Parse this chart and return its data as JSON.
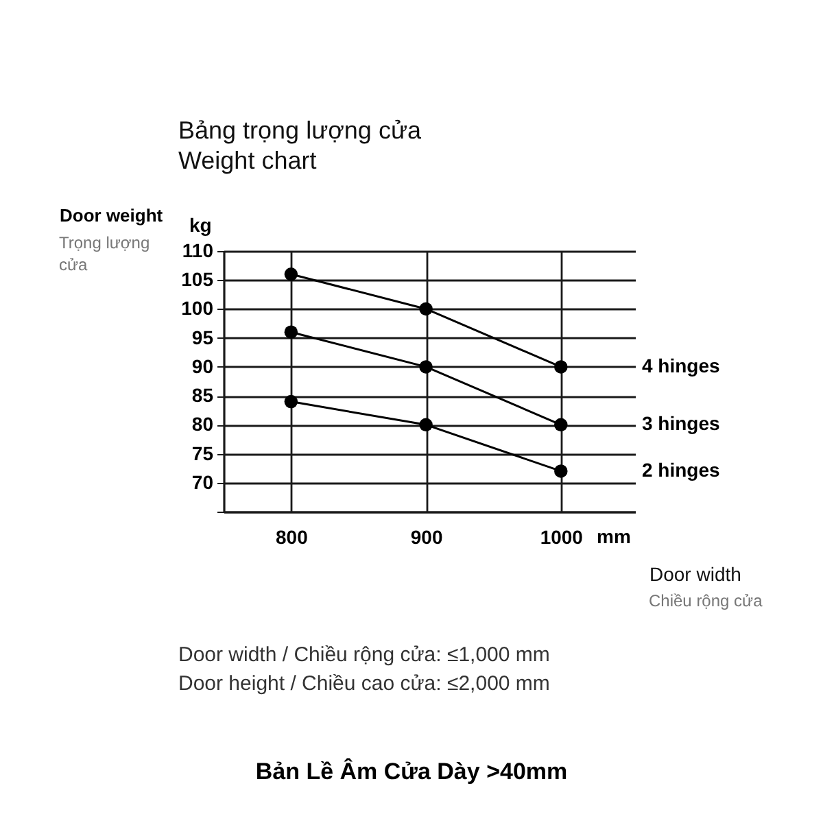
{
  "chart_data": {
    "type": "line",
    "title": "Bảng trọng lượng cửa",
    "subtitle": "Weight chart",
    "xlabel": "Door width",
    "ylabel": "Door weight",
    "x": [
      800,
      900,
      1000
    ],
    "series": [
      {
        "name": "4 hinges",
        "color": "#000000",
        "values": [
          106,
          100,
          90
        ]
      },
      {
        "name": "3 hinges",
        "color": "#000000",
        "values": [
          96,
          90,
          80
        ]
      },
      {
        "name": "2 hinges",
        "color": "#000000",
        "values": [
          84,
          80,
          72
        ]
      }
    ],
    "xlim": [
      750,
      1055
    ],
    "xticks": [
      800,
      900,
      1000
    ],
    "ylim": [
      65,
      110
    ],
    "yticks": [
      {
        "value": 65,
        "label": null
      },
      70,
      75,
      80,
      85,
      90,
      95,
      100,
      105,
      110
    ],
    "grid": true,
    "legend": false,
    "marker": "circle",
    "line_style": "solid",
    "annotations": [
      "kg",
      "Trọng lượng cửa",
      "mm",
      "Chiều rộng cửa",
      "Door width / Chiều rộng cửa: ≤1,000 mm",
      "Door height / Chiều cao cửa: ≤2,000 mm",
      "Bản Lề Âm Cửa Dày >40mm"
    ]
  }
}
